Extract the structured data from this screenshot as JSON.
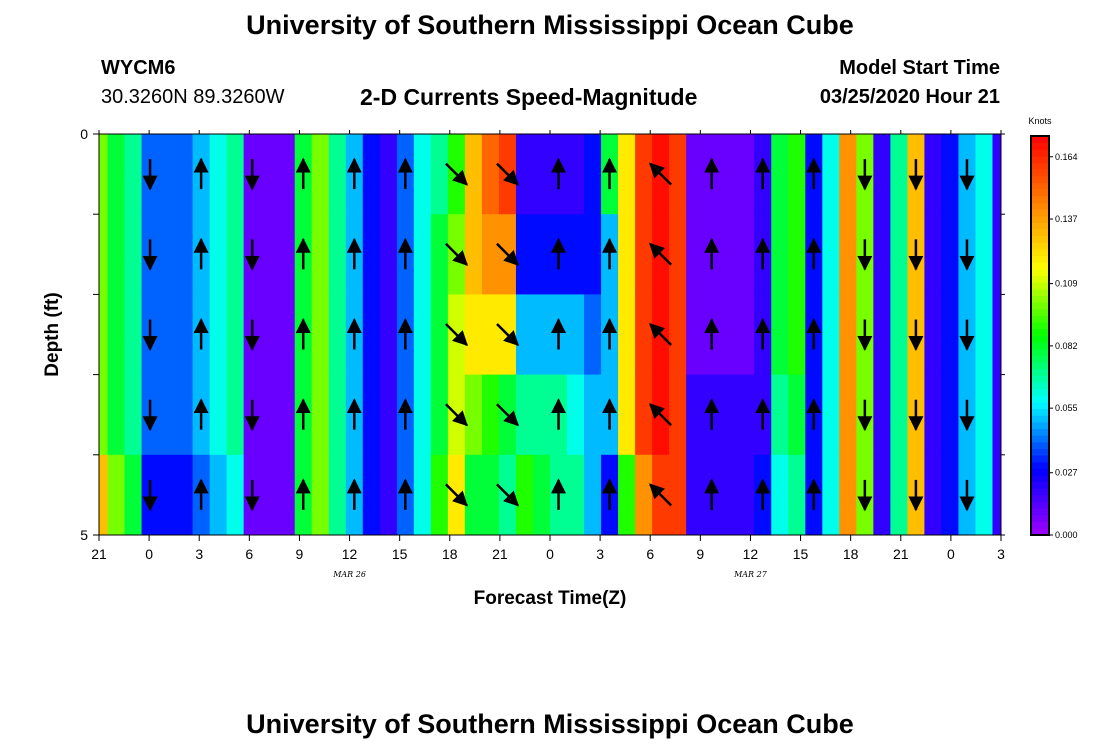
{
  "header": {
    "title": "University of Southern Mississippi Ocean Cube",
    "station": "WYCM6",
    "coordinates": "30.3260N 89.3260W",
    "subtitle": "2-D Currents Speed-Magnitude",
    "model_start_label": "Model Start Time",
    "model_start_value": "03/25/2020 Hour 21"
  },
  "footer": {
    "title": "University of Southern Mississippi Ocean Cube"
  },
  "chart_data": {
    "type": "heatmap",
    "xlabel": "Forecast Time(Z)",
    "ylabel": "Depth (ft)",
    "x_tick_labels": [
      "21",
      "0",
      "3",
      "6",
      "9",
      "12",
      "15",
      "18",
      "21",
      "0",
      "3",
      "6",
      "9",
      "12",
      "15",
      "18",
      "21",
      "0",
      "3"
    ],
    "date_labels": [
      {
        "text": "MAR  26",
        "at_tick": 5
      },
      {
        "text": "MAR  27",
        "at_tick": 13
      }
    ],
    "y_tick_labels": [
      "0",
      "5"
    ],
    "ylim": [
      0,
      5
    ],
    "hours": 54,
    "depth_levels": 5,
    "colorbar": {
      "title": "Knots",
      "range": [
        0,
        0.173
      ],
      "tick_labels": [
        "0.000",
        "0.027",
        "0.055",
        "0.082",
        "0.109",
        "0.137",
        "0.164"
      ],
      "tick_values": [
        0.0,
        0.027,
        0.055,
        0.082,
        0.109,
        0.137,
        0.164
      ],
      "colors": [
        "#a000ff",
        "#0000ff",
        "#00ffff",
        "#00ff00",
        "#ffff00",
        "#ff8000",
        "#ff0000"
      ]
    },
    "speed_by_hour_surface_to_bottom": [
      [
        0.1,
        0.1,
        0.1,
        0.1,
        0.13
      ],
      [
        0.08,
        0.08,
        0.08,
        0.08,
        0.1
      ],
      [
        0.07,
        0.07,
        0.07,
        0.07,
        0.08
      ],
      [
        0.04,
        0.04,
        0.04,
        0.04,
        0.03
      ],
      [
        0.04,
        0.04,
        0.04,
        0.04,
        0.03
      ],
      [
        0.04,
        0.04,
        0.04,
        0.04,
        0.03
      ],
      [
        0.05,
        0.05,
        0.05,
        0.05,
        0.04
      ],
      [
        0.06,
        0.06,
        0.06,
        0.06,
        0.05
      ],
      [
        0.07,
        0.07,
        0.07,
        0.07,
        0.06
      ],
      [
        0.01,
        0.01,
        0.01,
        0.01,
        0.01
      ],
      [
        0.01,
        0.01,
        0.01,
        0.01,
        0.01
      ],
      [
        0.01,
        0.01,
        0.01,
        0.01,
        0.01
      ],
      [
        0.08,
        0.08,
        0.08,
        0.08,
        0.08
      ],
      [
        0.1,
        0.1,
        0.1,
        0.1,
        0.1
      ],
      [
        0.07,
        0.07,
        0.07,
        0.07,
        0.07
      ],
      [
        0.05,
        0.05,
        0.05,
        0.05,
        0.05
      ],
      [
        0.03,
        0.03,
        0.03,
        0.03,
        0.03
      ],
      [
        0.02,
        0.02,
        0.02,
        0.02,
        0.02
      ],
      [
        0.04,
        0.04,
        0.04,
        0.04,
        0.04
      ],
      [
        0.06,
        0.06,
        0.06,
        0.06,
        0.06
      ],
      [
        0.07,
        0.08,
        0.08,
        0.08,
        0.09
      ],
      [
        0.09,
        0.1,
        0.11,
        0.11,
        0.12
      ],
      [
        0.13,
        0.13,
        0.12,
        0.1,
        0.08
      ],
      [
        0.15,
        0.14,
        0.12,
        0.09,
        0.08
      ],
      [
        0.16,
        0.14,
        0.12,
        0.08,
        0.07
      ],
      [
        0.02,
        0.03,
        0.05,
        0.07,
        0.09
      ],
      [
        0.02,
        0.03,
        0.05,
        0.07,
        0.08
      ],
      [
        0.02,
        0.03,
        0.05,
        0.07,
        0.07
      ],
      [
        0.02,
        0.03,
        0.05,
        0.06,
        0.07
      ],
      [
        0.03,
        0.03,
        0.04,
        0.05,
        0.05
      ],
      [
        0.08,
        0.05,
        0.05,
        0.05,
        0.03
      ],
      [
        0.12,
        0.12,
        0.12,
        0.12,
        0.09
      ],
      [
        0.16,
        0.16,
        0.16,
        0.16,
        0.14
      ],
      [
        0.17,
        0.17,
        0.17,
        0.17,
        0.16
      ],
      [
        0.16,
        0.16,
        0.16,
        0.16,
        0.16
      ],
      [
        0.01,
        0.01,
        0.01,
        0.02,
        0.02
      ],
      [
        0.01,
        0.01,
        0.01,
        0.02,
        0.02
      ],
      [
        0.01,
        0.01,
        0.01,
        0.02,
        0.02
      ],
      [
        0.01,
        0.01,
        0.01,
        0.02,
        0.02
      ],
      [
        0.02,
        0.02,
        0.02,
        0.02,
        0.03
      ],
      [
        0.08,
        0.08,
        0.08,
        0.07,
        0.06
      ],
      [
        0.09,
        0.09,
        0.09,
        0.08,
        0.07
      ],
      [
        0.03,
        0.03,
        0.03,
        0.03,
        0.03
      ],
      [
        0.06,
        0.06,
        0.06,
        0.06,
        0.06
      ],
      [
        0.14,
        0.14,
        0.14,
        0.14,
        0.14
      ],
      [
        0.1,
        0.1,
        0.1,
        0.1,
        0.1
      ],
      [
        0.02,
        0.02,
        0.02,
        0.02,
        0.02
      ],
      [
        0.07,
        0.07,
        0.07,
        0.07,
        0.07
      ],
      [
        0.13,
        0.13,
        0.13,
        0.13,
        0.13
      ],
      [
        0.02,
        0.02,
        0.02,
        0.02,
        0.02
      ],
      [
        0.03,
        0.03,
        0.03,
        0.03,
        0.03
      ],
      [
        0.05,
        0.05,
        0.05,
        0.05,
        0.05
      ],
      [
        0.06,
        0.06,
        0.06,
        0.06,
        0.06
      ],
      [
        0.02,
        0.02,
        0.02,
        0.02,
        0.02
      ]
    ],
    "current_vectors": [
      {
        "hour": 3,
        "depth_level": 1,
        "dir": "S"
      },
      {
        "hour": 6,
        "depth_level": 1,
        "dir": "N"
      },
      {
        "hour": 9,
        "depth_level": 1,
        "dir": "S"
      },
      {
        "hour": 12,
        "depth_level": 1,
        "dir": "N"
      },
      {
        "hour": 15,
        "depth_level": 1,
        "dir": "N"
      },
      {
        "hour": 18,
        "depth_level": 1,
        "dir": "N"
      },
      {
        "hour": 21,
        "depth_level": 1,
        "dir": "SE"
      },
      {
        "hour": 24,
        "depth_level": 1,
        "dir": "SE"
      },
      {
        "hour": 27,
        "depth_level": 1,
        "dir": "N"
      },
      {
        "hour": 30,
        "depth_level": 1,
        "dir": "N"
      },
      {
        "hour": 33,
        "depth_level": 1,
        "dir": "NW"
      },
      {
        "hour": 36,
        "depth_level": 1,
        "dir": "N"
      },
      {
        "hour": 39,
        "depth_level": 1,
        "dir": "N"
      },
      {
        "hour": 42,
        "depth_level": 1,
        "dir": "N"
      },
      {
        "hour": 45,
        "depth_level": 1,
        "dir": "S"
      },
      {
        "hour": 48,
        "depth_level": 1,
        "dir": "S"
      },
      {
        "hour": 51,
        "depth_level": 1,
        "dir": "S"
      }
    ]
  }
}
